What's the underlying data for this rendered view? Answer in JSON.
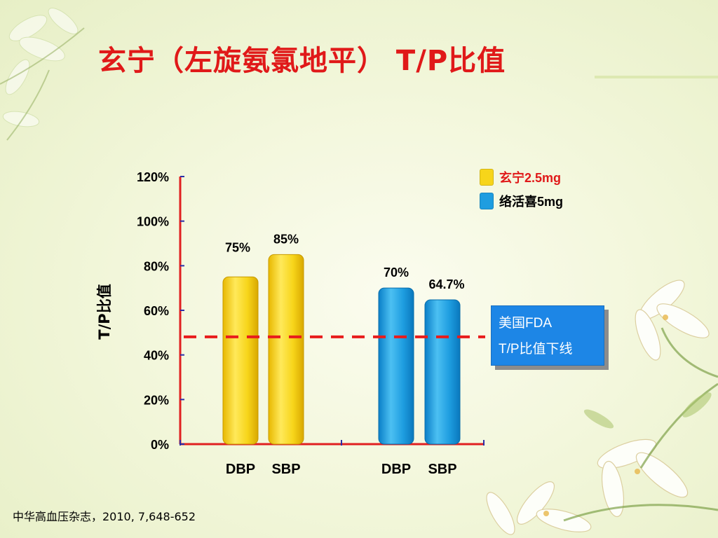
{
  "slide": {
    "title": "玄宁（左旋氨氯地平） T/P比值",
    "footnote": "中华高血压杂志，2010, 7,648-652"
  },
  "colors": {
    "title": "#e01919",
    "axis": "#e02020",
    "tick_marks": "#2b2fa8",
    "yellow_series": "#f7d51a",
    "blue_series": "#1e9de0",
    "fda_box": "#1d86e6",
    "threshold_line": "#e81c1c"
  },
  "legend": {
    "items": [
      {
        "label": "玄宁2.5mg",
        "color": "#f7d51a",
        "text_color": "#e01919"
      },
      {
        "label": "络活喜5mg",
        "color": "#1e9de0",
        "text_color": "#000000"
      }
    ]
  },
  "annotation": {
    "line1": "美国FDA",
    "line2": "T/P比值下线"
  },
  "chart_data": {
    "type": "bar",
    "categories": [
      "DBP",
      "SBP",
      "DBP",
      "SBP"
    ],
    "series": [
      {
        "name": "玄宁2.5mg",
        "values": [
          75,
          85,
          null,
          null
        ],
        "labels": [
          "75%",
          "85%",
          "",
          ""
        ]
      },
      {
        "name": "络活喜5mg",
        "values": [
          null,
          null,
          70,
          64.7
        ],
        "labels": [
          "",
          "",
          "70%",
          "64.7%"
        ]
      }
    ],
    "ylabel": "T/P比值",
    "xlabel": "",
    "ylim": [
      0,
      120
    ],
    "yticks": [
      "0%",
      "20%",
      "40%",
      "60%",
      "80%",
      "100%",
      "120%"
    ],
    "ytick_values": [
      0,
      20,
      40,
      60,
      80,
      100,
      120
    ],
    "threshold": {
      "value": 50,
      "style": "dashed"
    },
    "legend_position": "top-right",
    "grid": false
  }
}
